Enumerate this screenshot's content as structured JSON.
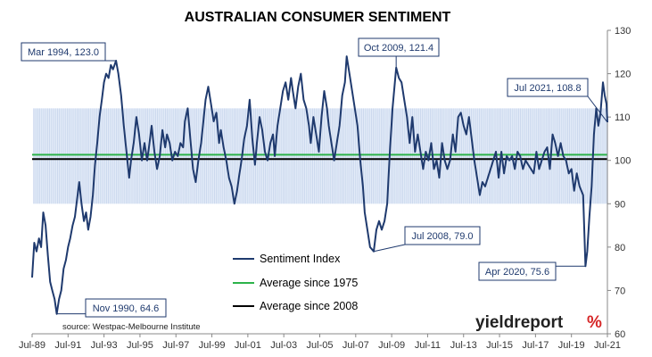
{
  "chart_data": {
    "type": "line",
    "title": "AUSTRALIAN CONSUMER SENTIMENT",
    "x_tick_labels": [
      "Jul-89",
      "Jul-91",
      "Jul-93",
      "Jul-95",
      "Jul-97",
      "Jul-99",
      "Jul-01",
      "Jul-03",
      "Jul-05",
      "Jul-07",
      "Jul-09",
      "Jul-11",
      "Jul-13",
      "Jul-15",
      "Jul-17",
      "Jul-19",
      "Jul-21"
    ],
    "x_range": [
      1989.5,
      2021.5
    ],
    "ylim": [
      60,
      130
    ],
    "y_ticks": [
      60,
      70,
      80,
      90,
      100,
      110,
      120,
      130
    ],
    "y_axis_side": "right",
    "grid": false,
    "legend_position": "bottom-center",
    "band": {
      "low": 90,
      "high": 112
    },
    "series": [
      {
        "name": "Sentiment Index",
        "color": "#1f3a6e",
        "points": [
          [
            1989.5,
            73
          ],
          [
            1989.62,
            81
          ],
          [
            1989.75,
            79
          ],
          [
            1989.88,
            82
          ],
          [
            1990.0,
            80
          ],
          [
            1990.12,
            88
          ],
          [
            1990.25,
            85
          ],
          [
            1990.38,
            78
          ],
          [
            1990.5,
            72
          ],
          [
            1990.62,
            70
          ],
          [
            1990.75,
            68
          ],
          [
            1990.87,
            64.6
          ],
          [
            1991.0,
            68
          ],
          [
            1991.12,
            70
          ],
          [
            1991.25,
            75
          ],
          [
            1991.38,
            77
          ],
          [
            1991.5,
            80
          ],
          [
            1991.62,
            82
          ],
          [
            1991.75,
            85
          ],
          [
            1991.88,
            87
          ],
          [
            1992.0,
            91
          ],
          [
            1992.12,
            95
          ],
          [
            1992.25,
            90
          ],
          [
            1992.38,
            86
          ],
          [
            1992.5,
            88
          ],
          [
            1992.62,
            84
          ],
          [
            1992.75,
            87
          ],
          [
            1992.88,
            92
          ],
          [
            1993.0,
            99
          ],
          [
            1993.12,
            104
          ],
          [
            1993.25,
            110
          ],
          [
            1993.38,
            114
          ],
          [
            1993.5,
            118
          ],
          [
            1993.62,
            120
          ],
          [
            1993.75,
            119
          ],
          [
            1993.88,
            122
          ],
          [
            1994.0,
            121
          ],
          [
            1994.17,
            123
          ],
          [
            1994.3,
            120
          ],
          [
            1994.45,
            115
          ],
          [
            1994.6,
            108
          ],
          [
            1994.75,
            102
          ],
          [
            1994.9,
            96
          ],
          [
            1995.0,
            100
          ],
          [
            1995.15,
            104
          ],
          [
            1995.3,
            110
          ],
          [
            1995.45,
            106
          ],
          [
            1995.6,
            100
          ],
          [
            1995.75,
            104
          ],
          [
            1995.9,
            100
          ],
          [
            1996.0,
            103
          ],
          [
            1996.15,
            108
          ],
          [
            1996.3,
            102
          ],
          [
            1996.45,
            98
          ],
          [
            1996.6,
            101
          ],
          [
            1996.75,
            107
          ],
          [
            1996.9,
            103
          ],
          [
            1997.0,
            106
          ],
          [
            1997.15,
            104
          ],
          [
            1997.3,
            100
          ],
          [
            1997.45,
            102
          ],
          [
            1997.6,
            101
          ],
          [
            1997.75,
            104
          ],
          [
            1997.9,
            103
          ],
          [
            1998.0,
            109
          ],
          [
            1998.15,
            112
          ],
          [
            1998.3,
            105
          ],
          [
            1998.45,
            98
          ],
          [
            1998.6,
            95
          ],
          [
            1998.75,
            100
          ],
          [
            1998.9,
            104
          ],
          [
            1999.0,
            108
          ],
          [
            1999.15,
            114
          ],
          [
            1999.3,
            117
          ],
          [
            1999.45,
            113
          ],
          [
            1999.6,
            109
          ],
          [
            1999.75,
            111
          ],
          [
            1999.9,
            104
          ],
          [
            2000.0,
            107
          ],
          [
            2000.15,
            103
          ],
          [
            2000.3,
            100
          ],
          [
            2000.45,
            96
          ],
          [
            2000.6,
            94
          ],
          [
            2000.75,
            90
          ],
          [
            2000.9,
            93
          ],
          [
            2001.0,
            96
          ],
          [
            2001.15,
            100
          ],
          [
            2001.3,
            105
          ],
          [
            2001.45,
            108
          ],
          [
            2001.6,
            114
          ],
          [
            2001.75,
            105
          ],
          [
            2001.9,
            99
          ],
          [
            2002.0,
            104
          ],
          [
            2002.15,
            110
          ],
          [
            2002.3,
            107
          ],
          [
            2002.45,
            102
          ],
          [
            2002.6,
            100
          ],
          [
            2002.75,
            104
          ],
          [
            2002.9,
            106
          ],
          [
            2003.0,
            101
          ],
          [
            2003.15,
            108
          ],
          [
            2003.3,
            112
          ],
          [
            2003.45,
            116
          ],
          [
            2003.6,
            118
          ],
          [
            2003.75,
            114
          ],
          [
            2003.9,
            119
          ],
          [
            2004.0,
            116
          ],
          [
            2004.15,
            112
          ],
          [
            2004.3,
            117
          ],
          [
            2004.45,
            120
          ],
          [
            2004.6,
            114
          ],
          [
            2004.75,
            112
          ],
          [
            2004.9,
            108
          ],
          [
            2005.0,
            104
          ],
          [
            2005.15,
            110
          ],
          [
            2005.3,
            106
          ],
          [
            2005.45,
            102
          ],
          [
            2005.6,
            110
          ],
          [
            2005.75,
            116
          ],
          [
            2005.9,
            112
          ],
          [
            2006.0,
            108
          ],
          [
            2006.15,
            104
          ],
          [
            2006.3,
            100
          ],
          [
            2006.45,
            104
          ],
          [
            2006.6,
            108
          ],
          [
            2006.75,
            115
          ],
          [
            2006.9,
            118
          ],
          [
            2007.0,
            124
          ],
          [
            2007.15,
            120
          ],
          [
            2007.3,
            116
          ],
          [
            2007.45,
            112
          ],
          [
            2007.6,
            108
          ],
          [
            2007.75,
            100
          ],
          [
            2007.9,
            94
          ],
          [
            2008.0,
            88
          ],
          [
            2008.15,
            84
          ],
          [
            2008.3,
            80
          ],
          [
            2008.5,
            79.0
          ],
          [
            2008.65,
            84
          ],
          [
            2008.8,
            86
          ],
          [
            2008.95,
            84
          ],
          [
            2009.1,
            86
          ],
          [
            2009.25,
            90
          ],
          [
            2009.4,
            102
          ],
          [
            2009.55,
            112
          ],
          [
            2009.75,
            121.4
          ],
          [
            2009.9,
            119
          ],
          [
            2010.05,
            118
          ],
          [
            2010.2,
            114
          ],
          [
            2010.35,
            110
          ],
          [
            2010.5,
            104
          ],
          [
            2010.65,
            110
          ],
          [
            2010.8,
            102
          ],
          [
            2010.95,
            106
          ],
          [
            2011.1,
            102
          ],
          [
            2011.25,
            98
          ],
          [
            2011.4,
            102
          ],
          [
            2011.55,
            100
          ],
          [
            2011.7,
            104
          ],
          [
            2011.85,
            98
          ],
          [
            2012.0,
            100
          ],
          [
            2012.15,
            96
          ],
          [
            2012.3,
            104
          ],
          [
            2012.45,
            100
          ],
          [
            2012.6,
            98
          ],
          [
            2012.75,
            100
          ],
          [
            2012.9,
            106
          ],
          [
            2013.05,
            102
          ],
          [
            2013.2,
            110
          ],
          [
            2013.35,
            111
          ],
          [
            2013.5,
            108
          ],
          [
            2013.65,
            106
          ],
          [
            2013.8,
            110
          ],
          [
            2013.95,
            105
          ],
          [
            2014.1,
            100
          ],
          [
            2014.25,
            96
          ],
          [
            2014.4,
            92
          ],
          [
            2014.55,
            95
          ],
          [
            2014.7,
            94
          ],
          [
            2014.85,
            96
          ],
          [
            2015.0,
            98
          ],
          [
            2015.15,
            100
          ],
          [
            2015.3,
            102
          ],
          [
            2015.45,
            96
          ],
          [
            2015.6,
            102
          ],
          [
            2015.75,
            97
          ],
          [
            2015.9,
            101
          ],
          [
            2016.05,
            100
          ],
          [
            2016.2,
            101
          ],
          [
            2016.35,
            98
          ],
          [
            2016.5,
            102
          ],
          [
            2016.65,
            101
          ],
          [
            2016.8,
            98
          ],
          [
            2016.95,
            100
          ],
          [
            2017.1,
            99
          ],
          [
            2017.25,
            98
          ],
          [
            2017.4,
            97
          ],
          [
            2017.55,
            102
          ],
          [
            2017.7,
            98
          ],
          [
            2017.85,
            100
          ],
          [
            2018.0,
            102
          ],
          [
            2018.15,
            103
          ],
          [
            2018.3,
            98
          ],
          [
            2018.45,
            106
          ],
          [
            2018.6,
            104
          ],
          [
            2018.75,
            101
          ],
          [
            2018.9,
            104
          ],
          [
            2019.05,
            101
          ],
          [
            2019.2,
            100
          ],
          [
            2019.35,
            97
          ],
          [
            2019.5,
            98
          ],
          [
            2019.65,
            93
          ],
          [
            2019.8,
            97
          ],
          [
            2019.95,
            94
          ],
          [
            2020.05,
            93
          ],
          [
            2020.15,
            92
          ],
          [
            2020.28,
            75.6
          ],
          [
            2020.38,
            79
          ],
          [
            2020.5,
            87
          ],
          [
            2020.62,
            94
          ],
          [
            2020.75,
            106
          ],
          [
            2020.88,
            112
          ],
          [
            2021.0,
            108
          ],
          [
            2021.12,
            111
          ],
          [
            2021.25,
            118
          ],
          [
            2021.35,
            115
          ],
          [
            2021.45,
            113
          ],
          [
            2021.5,
            108.8
          ]
        ]
      },
      {
        "name": "Average since 1975",
        "color": "#2db34a",
        "value": 101.3
      },
      {
        "name": "Average since 2008",
        "color": "#000000",
        "value": 100.3
      }
    ],
    "annotations": [
      {
        "label": "Mar 1994, 123.0",
        "x": 1994.17,
        "y": 123.0
      },
      {
        "label": "Oct 2009, 121.4",
        "x": 2009.75,
        "y": 121.4
      },
      {
        "label": "Jul 2021, 108.8",
        "x": 2021.5,
        "y": 108.8
      },
      {
        "label": "Jul 2008, 79.0",
        "x": 2008.5,
        "y": 79.0
      },
      {
        "label": "Apr 2020, 75.6",
        "x": 2020.28,
        "y": 75.6
      },
      {
        "label": "Nov 1990, 64.6",
        "x": 1990.87,
        "y": 64.6
      }
    ],
    "source": "source: Westpac-Melbourne Institute",
    "brand": {
      "text_main": "yieldreport",
      "text_mark": "%"
    }
  }
}
